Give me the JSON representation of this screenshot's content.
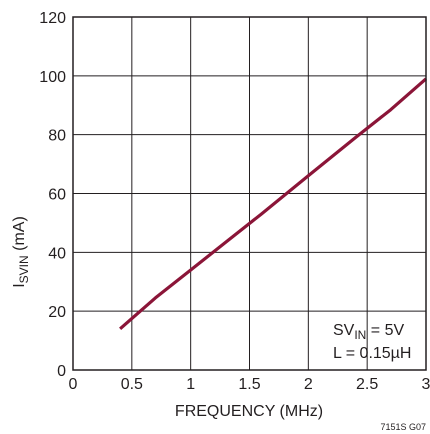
{
  "chart_data": {
    "type": "line",
    "xlabel": "FREQUENCY (MHz)",
    "ylabel": {
      "main": "I",
      "sub": "SVIN",
      "suffix": " (mA)"
    },
    "xlim": [
      0,
      3
    ],
    "ylim": [
      0,
      120
    ],
    "xticks": [
      "0",
      "0.5",
      "1",
      "1.5",
      "2",
      "2.5",
      "3"
    ],
    "yticks": [
      "0",
      "20",
      "40",
      "60",
      "80",
      "100",
      "120"
    ],
    "grid": true,
    "series": [
      {
        "color": "#8b1538",
        "x": [
          0.4,
          0.7,
          1.0,
          1.3,
          1.6,
          2.0,
          2.4,
          2.7,
          3.0
        ],
        "y": [
          14,
          24.5,
          34,
          43.5,
          53,
          66,
          79,
          88.5,
          99
        ]
      }
    ],
    "annotation": {
      "line1_main": "SV",
      "line1_sub": "IN",
      "line1_rest": " = 5V",
      "line2": "L = 0.15µH"
    },
    "figure_id": "7151S G07"
  }
}
